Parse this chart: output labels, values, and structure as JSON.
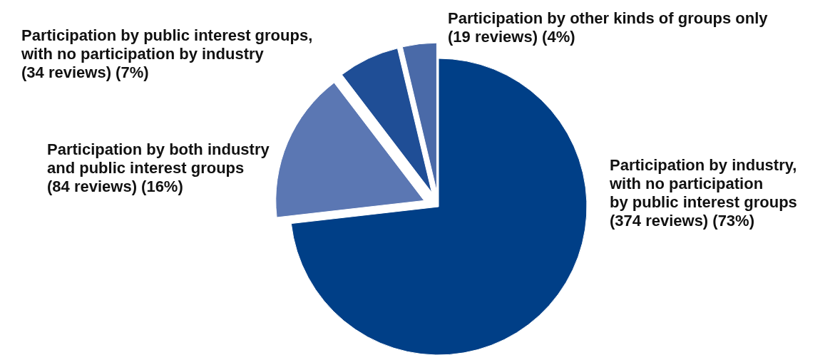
{
  "chart_data": {
    "type": "pie",
    "categories": [
      "Participation by industry,\nwith no participation\nby public interest groups\n(374 reviews) (73%)",
      "Participation by both industry\nand public interest groups\n(84 reviews) (16%)",
      "Participation by public interest groups,\nwith no participation by industry\n(34 reviews) (7%)",
      "Participation by other kinds of groups only\n(19 reviews) (4%)"
    ],
    "values": [
      374,
      84,
      34,
      19
    ],
    "colors": [
      "#003f87",
      "#5b77b3",
      "#1f4e96",
      "#4a6aa8"
    ]
  }
}
